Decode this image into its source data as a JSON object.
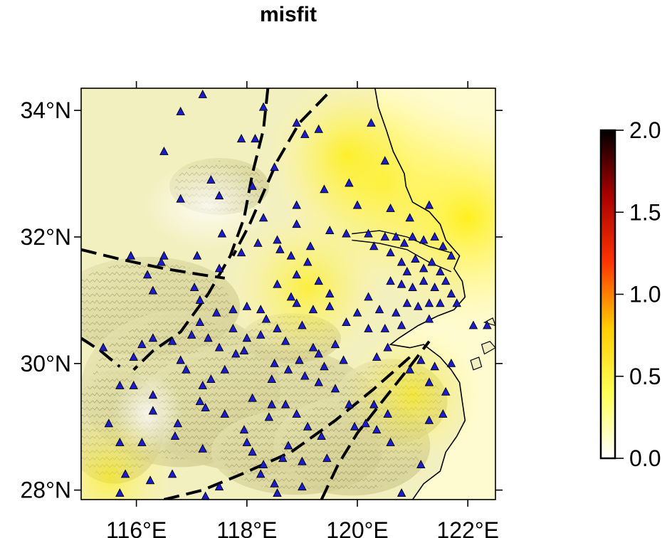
{
  "title": "misfit",
  "map": {
    "lon_range": [
      115.0,
      122.5
    ],
    "lat_range": [
      27.85,
      34.35
    ],
    "lon_ticks": [
      {
        "value": 116,
        "label": "116°E"
      },
      {
        "value": 118,
        "label": "118°E"
      },
      {
        "value": 120,
        "label": "120°E"
      },
      {
        "value": 122,
        "label": "122°E"
      }
    ],
    "lat_ticks": [
      {
        "value": 34,
        "label": "34°N"
      },
      {
        "value": 32,
        "label": "32°N"
      },
      {
        "value": 30,
        "label": "30°N"
      },
      {
        "value": 28,
        "label": "28°N"
      }
    ],
    "fault_lines": [
      [
        [
          118.38,
          34.35
        ],
        [
          118.3,
          33.7
        ],
        [
          118.1,
          33.0
        ],
        [
          117.95,
          32.3
        ],
        [
          117.7,
          31.7
        ],
        [
          117.3,
          31.1
        ],
        [
          116.8,
          30.5
        ],
        [
          116.3,
          30.2
        ],
        [
          115.95,
          29.9
        ]
      ],
      [
        [
          115.0,
          31.8
        ],
        [
          115.7,
          31.65
        ],
        [
          116.5,
          31.5
        ],
        [
          117.2,
          31.4
        ],
        [
          117.6,
          31.35
        ]
      ],
      [
        [
          115.0,
          30.4
        ],
        [
          115.35,
          30.2
        ],
        [
          115.7,
          29.95
        ]
      ],
      [
        [
          119.45,
          34.25
        ],
        [
          118.95,
          33.8
        ],
        [
          118.55,
          33.2
        ],
        [
          118.3,
          32.7
        ],
        [
          118.05,
          32.2
        ],
        [
          117.75,
          31.7
        ]
      ],
      [
        [
          116.5,
          27.85
        ],
        [
          117.2,
          28.0
        ],
        [
          117.9,
          28.25
        ],
        [
          118.8,
          28.6
        ],
        [
          119.6,
          29.1
        ],
        [
          120.3,
          29.6
        ],
        [
          120.95,
          30.1
        ]
      ],
      [
        [
          119.35,
          27.85
        ],
        [
          119.65,
          28.4
        ],
        [
          120.0,
          28.9
        ],
        [
          120.45,
          29.4
        ],
        [
          120.95,
          29.95
        ],
        [
          121.3,
          30.35
        ]
      ]
    ],
    "coastline": [
      [
        120.32,
        34.35
      ],
      [
        120.38,
        34.05
      ],
      [
        120.52,
        33.7
      ],
      [
        120.65,
        33.35
      ],
      [
        120.85,
        33.0
      ],
      [
        120.88,
        32.8
      ],
      [
        121.0,
        32.55
      ],
      [
        121.3,
        32.4
      ],
      [
        121.5,
        32.2
      ],
      [
        121.6,
        31.95
      ],
      [
        121.85,
        31.7
      ],
      [
        121.75,
        31.5
      ],
      [
        121.9,
        31.3
      ],
      [
        121.95,
        31.05
      ],
      [
        121.75,
        30.85
      ],
      [
        121.45,
        30.75
      ],
      [
        121.1,
        30.6
      ],
      [
        120.75,
        30.4
      ],
      [
        120.6,
        30.3
      ],
      [
        120.95,
        30.25
      ],
      [
        121.2,
        30.3
      ],
      [
        121.5,
        30.1
      ],
      [
        121.7,
        29.9
      ],
      [
        121.85,
        29.7
      ],
      [
        121.9,
        29.4
      ],
      [
        121.95,
        29.1
      ],
      [
        121.8,
        28.85
      ],
      [
        121.6,
        28.6
      ],
      [
        121.5,
        28.3
      ],
      [
        121.2,
        28.1
      ],
      [
        121.0,
        27.85
      ]
    ],
    "yangtze_banks": [
      [
        [
          119.9,
          32.05
        ],
        [
          120.4,
          32.1
        ],
        [
          120.9,
          32.0
        ],
        [
          121.3,
          31.85
        ],
        [
          121.7,
          31.75
        ]
      ],
      [
        [
          119.9,
          31.95
        ],
        [
          120.4,
          31.9
        ],
        [
          120.9,
          31.8
        ],
        [
          121.3,
          31.6
        ],
        [
          121.7,
          31.45
        ]
      ]
    ],
    "islands": [
      [
        [
          122.25,
          30.3
        ],
        [
          122.4,
          30.35
        ],
        [
          122.5,
          30.25
        ],
        [
          122.3,
          30.15
        ]
      ],
      [
        [
          122.05,
          30.05
        ],
        [
          122.2,
          30.1
        ],
        [
          122.25,
          29.95
        ],
        [
          122.1,
          29.9
        ]
      ],
      [
        [
          122.3,
          30.65
        ],
        [
          122.45,
          30.72
        ],
        [
          122.5,
          30.6
        ]
      ]
    ],
    "misfit_hotspots": [
      {
        "lon": 120.5,
        "lat": 32.85,
        "value": 0.5
      },
      {
        "lon": 122.0,
        "lat": 32.3,
        "value": 0.55
      },
      {
        "lon": 119.8,
        "lat": 33.3,
        "value": 0.3
      },
      {
        "lon": 119.1,
        "lat": 31.2,
        "value": 0.3
      },
      {
        "lon": 121.0,
        "lat": 29.5,
        "value": 0.22
      },
      {
        "lon": 115.5,
        "lat": 28.2,
        "value": 0.2
      }
    ],
    "stations": [
      [
        117.2,
        34.25
      ],
      [
        116.8,
        33.98
      ],
      [
        118.3,
        34.05
      ],
      [
        117.9,
        33.55
      ],
      [
        118.15,
        33.55
      ],
      [
        116.5,
        33.35
      ],
      [
        118.9,
        33.8
      ],
      [
        119.05,
        33.62
      ],
      [
        119.3,
        33.7
      ],
      [
        118.5,
        33.1
      ],
      [
        117.35,
        32.9
      ],
      [
        117.5,
        32.65
      ],
      [
        116.8,
        32.6
      ],
      [
        118.1,
        32.8
      ],
      [
        118.3,
        32.3
      ],
      [
        119.4,
        32.75
      ],
      [
        119.85,
        32.85
      ],
      [
        120.25,
        33.8
      ],
      [
        120.5,
        33.2
      ],
      [
        120.0,
        32.5
      ],
      [
        120.6,
        32.45
      ],
      [
        121.3,
        32.5
      ],
      [
        120.95,
        32.3
      ],
      [
        119.5,
        32.1
      ],
      [
        119.8,
        32.05
      ],
      [
        120.2,
        32.05
      ],
      [
        120.3,
        31.85
      ],
      [
        120.5,
        32.0
      ],
      [
        120.7,
        32.0
      ],
      [
        120.85,
        31.9
      ],
      [
        121.0,
        32.0
      ],
      [
        121.2,
        31.95
      ],
      [
        121.4,
        32.0
      ],
      [
        121.55,
        31.85
      ],
      [
        121.7,
        31.7
      ],
      [
        120.6,
        31.75
      ],
      [
        120.8,
        31.6
      ],
      [
        120.9,
        31.45
      ],
      [
        121.05,
        31.65
      ],
      [
        121.2,
        31.5
      ],
      [
        121.35,
        31.6
      ],
      [
        121.5,
        31.45
      ],
      [
        121.6,
        31.3
      ],
      [
        121.4,
        31.2
      ],
      [
        121.2,
        31.3
      ],
      [
        121.0,
        31.2
      ],
      [
        120.8,
        31.25
      ],
      [
        120.6,
        31.3
      ],
      [
        121.7,
        31.1
      ],
      [
        121.8,
        30.95
      ],
      [
        121.5,
        30.95
      ],
      [
        121.3,
        30.95
      ],
      [
        121.1,
        30.9
      ],
      [
        120.9,
        30.95
      ],
      [
        120.7,
        30.8
      ],
      [
        120.4,
        30.85
      ],
      [
        120.2,
        31.05
      ],
      [
        120.0,
        30.8
      ],
      [
        119.8,
        30.65
      ],
      [
        120.2,
        30.55
      ],
      [
        120.5,
        30.55
      ],
      [
        120.8,
        30.6
      ],
      [
        121.3,
        30.7
      ],
      [
        119.5,
        30.9
      ],
      [
        119.2,
        30.85
      ],
      [
        118.9,
        30.95
      ],
      [
        118.8,
        31.05
      ],
      [
        118.55,
        31.25
      ],
      [
        118.9,
        31.4
      ],
      [
        119.3,
        31.3
      ],
      [
        119.5,
        31.1
      ],
      [
        119.1,
        31.6
      ],
      [
        118.8,
        31.7
      ],
      [
        118.6,
        31.8
      ],
      [
        118.2,
        31.9
      ],
      [
        117.9,
        31.75
      ],
      [
        117.5,
        31.5
      ],
      [
        117.1,
        31.7
      ],
      [
        116.5,
        31.7
      ],
      [
        116.45,
        31.6
      ],
      [
        115.9,
        31.7
      ],
      [
        116.2,
        31.4
      ],
      [
        116.3,
        31.15
      ],
      [
        117.05,
        31.2
      ],
      [
        117.15,
        31.0
      ],
      [
        117.45,
        30.8
      ],
      [
        117.75,
        30.85
      ],
      [
        118.0,
        30.9
      ],
      [
        118.35,
        30.7
      ],
      [
        118.55,
        30.55
      ],
      [
        118.25,
        30.45
      ],
      [
        118.0,
        30.4
      ],
      [
        117.8,
        30.15
      ],
      [
        117.5,
        30.25
      ],
      [
        117.3,
        30.4
      ],
      [
        117.15,
        30.65
      ],
      [
        116.8,
        30.05
      ],
      [
        116.9,
        29.9
      ],
      [
        116.65,
        30.35
      ],
      [
        116.3,
        30.4
      ],
      [
        116.1,
        30.3
      ],
      [
        115.95,
        30.1
      ],
      [
        115.4,
        30.25
      ],
      [
        115.7,
        29.65
      ],
      [
        115.95,
        29.65
      ],
      [
        116.3,
        29.25
      ],
      [
        116.1,
        28.75
      ],
      [
        115.5,
        29.05
      ],
      [
        115.7,
        28.75
      ],
      [
        116.3,
        29.5
      ],
      [
        116.7,
        28.85
      ],
      [
        116.75,
        29.05
      ],
      [
        117.15,
        29.4
      ],
      [
        117.25,
        29.3
      ],
      [
        117.2,
        29.65
      ],
      [
        117.6,
        29.2
      ],
      [
        117.95,
        28.95
      ],
      [
        118.0,
        28.75
      ],
      [
        118.1,
        28.6
      ],
      [
        117.2,
        28.65
      ],
      [
        118.3,
        28.4
      ],
      [
        118.25,
        28.25
      ],
      [
        118.5,
        28.1
      ],
      [
        118.55,
        27.95
      ],
      [
        119.0,
        28.05
      ],
      [
        118.65,
        28.5
      ],
      [
        118.75,
        28.7
      ],
      [
        119.0,
        28.45
      ],
      [
        119.45,
        28.5
      ],
      [
        119.35,
        28.85
      ],
      [
        119.1,
        29.0
      ],
      [
        118.9,
        29.2
      ],
      [
        118.7,
        29.35
      ],
      [
        118.4,
        29.15
      ],
      [
        118.45,
        29.35
      ],
      [
        118.1,
        29.45
      ],
      [
        118.45,
        29.75
      ],
      [
        118.75,
        29.9
      ],
      [
        119.05,
        29.8
      ],
      [
        119.3,
        29.7
      ],
      [
        119.6,
        29.6
      ],
      [
        119.85,
        29.35
      ],
      [
        120.3,
        29.35
      ],
      [
        120.55,
        29.2
      ],
      [
        120.15,
        29.05
      ],
      [
        119.95,
        29.0
      ],
      [
        120.35,
        28.95
      ],
      [
        120.6,
        28.75
      ],
      [
        121.15,
        28.4
      ],
      [
        120.8,
        27.95
      ],
      [
        121.3,
        29.1
      ],
      [
        121.55,
        29.2
      ],
      [
        121.3,
        29.7
      ],
      [
        120.95,
        29.9
      ],
      [
        120.55,
        30.25
      ],
      [
        120.35,
        30.1
      ],
      [
        121.15,
        30.05
      ],
      [
        121.4,
        29.95
      ],
      [
        121.7,
        30.0
      ],
      [
        121.6,
        29.55
      ],
      [
        122.1,
        30.6
      ],
      [
        122.35,
        30.6
      ],
      [
        119.6,
        30.3
      ],
      [
        119.75,
        30.05
      ],
      [
        119.3,
        30.15
      ],
      [
        118.95,
        30.05
      ],
      [
        119.4,
        29.95
      ],
      [
        118.5,
        30.0
      ],
      [
        119.2,
        30.25
      ],
      [
        118.7,
        30.35
      ],
      [
        119.0,
        30.6
      ],
      [
        117.6,
        29.9
      ],
      [
        117.35,
        29.75
      ],
      [
        115.8,
        28.25
      ],
      [
        116.25,
        28.15
      ],
      [
        115.7,
        27.95
      ],
      [
        117.25,
        27.9
      ],
      [
        117.5,
        28.05
      ],
      [
        116.65,
        28.25
      ],
      [
        118.9,
        32.2
      ],
      [
        118.55,
        31.95
      ],
      [
        119.15,
        31.85
      ],
      [
        117.55,
        32.05
      ],
      [
        118.9,
        32.5
      ],
      [
        118.25,
        30.85
      ],
      [
        117.75,
        30.55
      ],
      [
        117.95,
        30.2
      ],
      [
        117.0,
        30.45
      ]
    ]
  },
  "colorbar": {
    "ticks": [
      {
        "value": 2.0,
        "label": "2.0"
      },
      {
        "value": 1.5,
        "label": "1.5"
      },
      {
        "value": 1.0,
        "label": "1.0"
      },
      {
        "value": 0.5,
        "label": "0.5"
      },
      {
        "value": 0.0,
        "label": "0.0"
      }
    ],
    "range": [
      0.0,
      2.0
    ],
    "stops": [
      "#ffffff",
      "#ffff55",
      "#ffcc00",
      "#ff3300",
      "#aa0000",
      "#000000"
    ]
  },
  "colors": {
    "station_fill": "#1c1ccf",
    "station_stroke": "#000000",
    "land_base": "#f3f0c0",
    "fault": "#000000",
    "coast": "#000000"
  }
}
